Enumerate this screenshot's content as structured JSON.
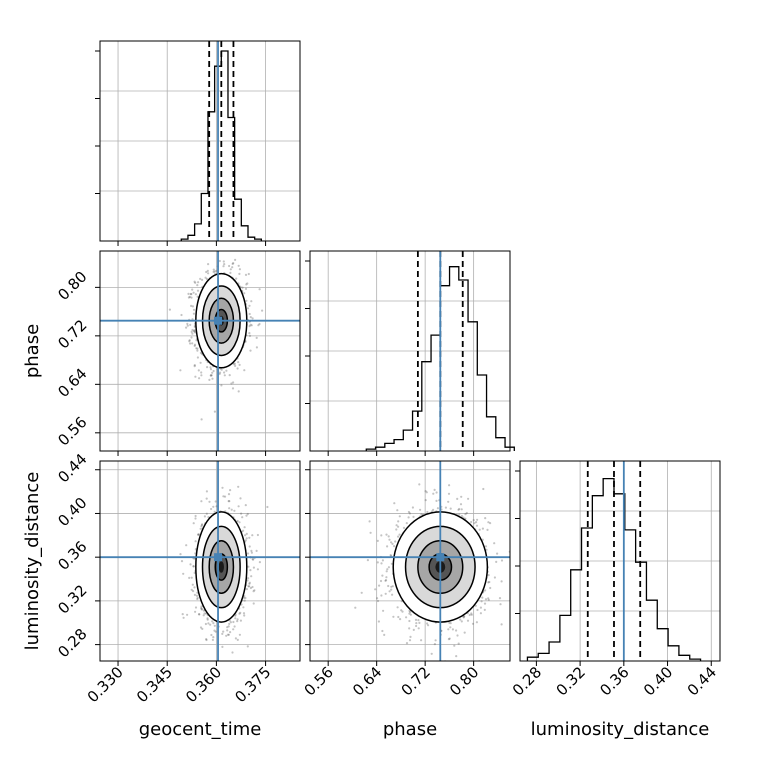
{
  "chart_data": {
    "type": "corner",
    "parameters": [
      "geocent_time",
      "phase",
      "luminosity_distance"
    ],
    "axis_labels": {
      "geocent_time": "geocent_time",
      "phase": "phase",
      "luminosity_distance": "luminosity_distance"
    },
    "ranges": {
      "geocent_time": [
        0.3245,
        0.3855
      ],
      "phase": [
        0.53,
        0.86
      ],
      "luminosity_distance": [
        0.265,
        0.448
      ]
    },
    "ticks": {
      "geocent_time": [
        0.33,
        0.345,
        0.36,
        0.375
      ],
      "phase": [
        0.56,
        0.64,
        0.72,
        0.8
      ],
      "luminosity_distance": [
        0.28,
        0.32,
        0.36,
        0.4,
        0.44
      ]
    },
    "tick_labels": {
      "geocent_time": [
        "0.330",
        "0.345",
        "0.360",
        "0.375"
      ],
      "phase": [
        "0.56",
        "0.64",
        "0.72",
        "0.80"
      ],
      "luminosity_distance": [
        "0.28",
        "0.32",
        "0.36",
        "0.40",
        "0.44"
      ]
    },
    "truths": {
      "geocent_time": 0.3605,
      "phase": 0.745,
      "luminosity_distance": 0.36
    },
    "quantiles": {
      "geocent_time": [
        0.3578,
        0.3615,
        0.3652
      ],
      "phase": [
        0.708,
        0.745,
        0.782
      ],
      "luminosity_distance": [
        0.327,
        0.351,
        0.375
      ]
    },
    "posterior_centers": {
      "geocent_time": 0.3615,
      "phase": 0.745,
      "luminosity_distance": 0.351
    },
    "histograms": {
      "geocent_time": [
        0.01,
        0.03,
        0.09,
        0.25,
        0.68,
        0.92,
        1.0,
        0.65,
        0.22,
        0.08,
        0.02,
        0.01
      ],
      "phase": [
        0.01,
        0.02,
        0.04,
        0.06,
        0.11,
        0.21,
        0.47,
        0.61,
        0.87,
        0.97,
        0.9,
        0.68,
        0.4,
        0.18,
        0.07,
        0.02
      ],
      "luminosity_distance": [
        0.02,
        0.04,
        0.1,
        0.24,
        0.48,
        0.7,
        0.87,
        0.96,
        0.88,
        0.69,
        0.52,
        0.32,
        0.17,
        0.08,
        0.03,
        0.01
      ]
    },
    "grid": true,
    "colors": {
      "truth": "#4682b4",
      "hist": "#000000",
      "quantile": "#000000",
      "grid": "#b0b0b0",
      "scatter": "#555555"
    }
  }
}
